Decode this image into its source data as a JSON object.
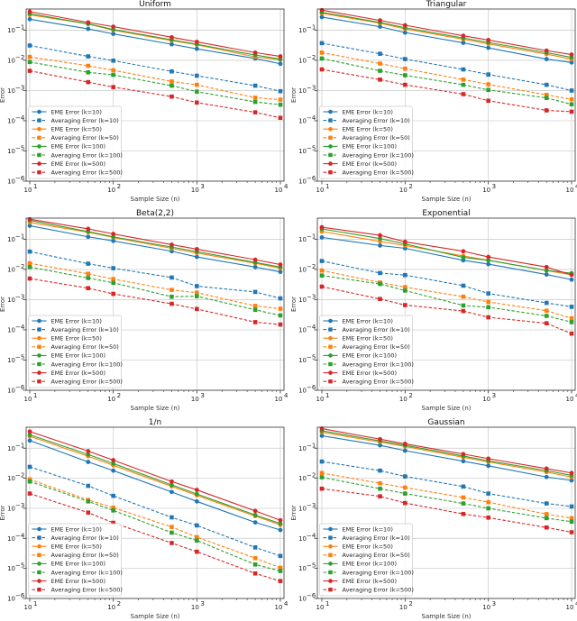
{
  "chart_data": {
    "type": "line",
    "layout": "3x2 grid of log-log subplots",
    "x": [
      10,
      50,
      100,
      500,
      1000,
      5000,
      10000
    ],
    "xlabel": "Sample Size (n)",
    "ylabel": "Error",
    "xscale": "log",
    "yscale": "log",
    "xlim": [
      10,
      10000
    ],
    "ylim": [
      1e-06,
      0.5
    ],
    "xticks": [
      10,
      100,
      1000,
      10000
    ],
    "xtick_labels": [
      "10",
      "10",
      "10",
      "10"
    ],
    "xtick_exponents": [
      "1",
      "2",
      "3",
      "4"
    ],
    "yticks": [
      1e-06,
      1e-05,
      0.0001,
      0.001,
      0.01,
      0.1
    ],
    "ytick_labels": [
      "10",
      "10",
      "10",
      "10",
      "10",
      "10"
    ],
    "ytick_exponents": [
      "−6",
      "−5",
      "−4",
      "−3",
      "−2",
      "−1"
    ],
    "grid": true,
    "legend_position": "lower-left",
    "series_styles": [
      {
        "name": "EME Error (k=10)",
        "color": "#1f77b4",
        "dash": "solid",
        "marker": "circle"
      },
      {
        "name": "Averaging Error (k=10)",
        "color": "#1f77b4",
        "dash": "dashed",
        "marker": "square"
      },
      {
        "name": "EME Error (k=50)",
        "color": "#ff7f0e",
        "dash": "solid",
        "marker": "circle"
      },
      {
        "name": "Averaging Error (k=50)",
        "color": "#ff7f0e",
        "dash": "dashed",
        "marker": "square"
      },
      {
        "name": "EME Error (k=100)",
        "color": "#2ca02c",
        "dash": "solid",
        "marker": "circle"
      },
      {
        "name": "Averaging Error (k=100)",
        "color": "#2ca02c",
        "dash": "dashed",
        "marker": "square"
      },
      {
        "name": "EME Error (k=500)",
        "color": "#d62728",
        "dash": "solid",
        "marker": "circle"
      },
      {
        "name": "Averaging Error (k=500)",
        "color": "#d62728",
        "dash": "dashed",
        "marker": "square"
      }
    ],
    "subplots": [
      {
        "title": "Uniform",
        "series": [
          {
            "name": "EME Error (k=10)",
            "values": [
              0.23,
              0.11,
              0.075,
              0.034,
              0.024,
              0.0115,
              0.0077
            ]
          },
          {
            "name": "Averaging Error (k=10)",
            "values": [
              0.031,
              0.0135,
              0.0098,
              0.0043,
              0.0031,
              0.00145,
              0.00095
            ]
          },
          {
            "name": "EME Error (k=50)",
            "values": [
              0.32,
              0.16,
              0.1,
              0.045,
              0.033,
              0.013,
              0.0105
            ]
          },
          {
            "name": "Averaging Error (k=50)",
            "values": [
              0.013,
              0.0066,
              0.0047,
              0.002,
              0.00155,
              0.00058,
              0.0005
            ]
          },
          {
            "name": "EME Error (k=100)",
            "values": [
              0.35,
              0.16,
              0.105,
              0.048,
              0.034,
              0.015,
              0.011
            ]
          },
          {
            "name": "Averaging Error (k=100)",
            "values": [
              0.0088,
              0.004,
              0.0033,
              0.00145,
              0.00092,
              0.00042,
              0.00034
            ]
          },
          {
            "name": "EME Error (k=500)",
            "values": [
              0.41,
              0.18,
              0.13,
              0.058,
              0.041,
              0.018,
              0.0135
            ]
          },
          {
            "name": "Averaging Error (k=500)",
            "values": [
              0.0045,
              0.0019,
              0.0013,
              0.00063,
              0.0004,
              0.00019,
              0.000125
            ]
          }
        ]
      },
      {
        "title": "Triangular",
        "series": [
          {
            "name": "EME Error (k=10)",
            "values": [
              0.27,
              0.13,
              0.083,
              0.038,
              0.026,
              0.011,
              0.0085
            ]
          },
          {
            "name": "Averaging Error (k=10)",
            "values": [
              0.037,
              0.0165,
              0.011,
              0.005,
              0.0034,
              0.00155,
              0.001
            ]
          },
          {
            "name": "EME Error (k=50)",
            "values": [
              0.36,
              0.17,
              0.11,
              0.05,
              0.035,
              0.016,
              0.011
            ]
          },
          {
            "name": "Averaging Error (k=50)",
            "values": [
              0.018,
              0.0078,
              0.0053,
              0.0023,
              0.0016,
              0.00072,
              0.00051
            ]
          },
          {
            "name": "EME Error (k=100)",
            "values": [
              0.39,
              0.18,
              0.12,
              0.055,
              0.039,
              0.018,
              0.0125
            ]
          },
          {
            "name": "Averaging Error (k=100)",
            "values": [
              0.0115,
              0.0045,
              0.0032,
              0.00155,
              0.00105,
              0.00057,
              0.00035
            ]
          },
          {
            "name": "EME Error (k=500)",
            "values": [
              0.46,
              0.21,
              0.145,
              0.065,
              0.047,
              0.021,
              0.0155
            ]
          },
          {
            "name": "Averaging Error (k=500)",
            "values": [
              0.005,
              0.0023,
              0.00155,
              0.00076,
              0.00046,
              0.00022,
              0.0002
            ]
          }
        ]
      },
      {
        "title": "Beta(2,2)",
        "series": [
          {
            "name": "EME Error (k=10)",
            "values": [
              0.28,
              0.12,
              0.088,
              0.04,
              0.026,
              0.012,
              0.0083
            ]
          },
          {
            "name": "Averaging Error (k=10)",
            "values": [
              0.039,
              0.0155,
              0.011,
              0.0054,
              0.0028,
              0.0018,
              0.0011
            ]
          },
          {
            "name": "EME Error (k=50)",
            "values": [
              0.36,
              0.17,
              0.115,
              0.05,
              0.035,
              0.016,
              0.011
            ]
          },
          {
            "name": "Averaging Error (k=50)",
            "values": [
              0.016,
              0.0072,
              0.0048,
              0.0021,
              0.0017,
              0.00062,
              0.0005
            ]
          },
          {
            "name": "EME Error (k=100)",
            "values": [
              0.42,
              0.18,
              0.12,
              0.055,
              0.039,
              0.017,
              0.012
            ]
          },
          {
            "name": "Averaging Error (k=100)",
            "values": [
              0.012,
              0.0052,
              0.0036,
              0.00125,
              0.0013,
              0.00046,
              0.0003
            ]
          },
          {
            "name": "EME Error (k=500)",
            "values": [
              0.46,
              0.22,
              0.15,
              0.066,
              0.047,
              0.021,
              0.0145
            ]
          },
          {
            "name": "Averaging Error (k=500)",
            "values": [
              0.005,
              0.0024,
              0.00155,
              0.00073,
              0.00049,
              0.00018,
              0.00015
            ]
          }
        ]
      },
      {
        "title": "Exponential",
        "series": [
          {
            "name": "EME Error (k=10)",
            "values": [
              0.115,
              0.062,
              0.05,
              0.02,
              0.015,
              0.0068,
              0.0046
            ]
          },
          {
            "name": "Averaging Error (k=10)",
            "values": [
              0.019,
              0.0076,
              0.0065,
              0.0029,
              0.0016,
              0.00078,
              0.00058
            ]
          },
          {
            "name": "EME Error (k=50)",
            "values": [
              0.18,
              0.085,
              0.062,
              0.028,
              0.02,
              0.0092,
              0.0067
            ]
          },
          {
            "name": "Averaging Error (k=50)",
            "values": [
              0.0092,
              0.0037,
              0.0026,
              0.00125,
              0.00084,
              0.00043,
              0.00024
            ]
          },
          {
            "name": "EME Error (k=100)",
            "values": [
              0.22,
              0.105,
              0.07,
              0.025,
              0.02,
              0.0093,
              0.0075
            ]
          },
          {
            "name": "Averaging Error (k=100)",
            "values": [
              0.0063,
              0.0033,
              0.002,
              0.00064,
              0.00056,
              0.00029,
              0.00018
            ]
          },
          {
            "name": "EME Error (k=500)",
            "values": [
              0.25,
              0.135,
              0.082,
              0.04,
              0.026,
              0.012,
              0.0066
            ]
          },
          {
            "name": "Averaging Error (k=500)",
            "values": [
              0.0027,
              0.00105,
              0.00066,
              0.00042,
              0.00026,
              0.000165,
              7.5e-05
            ]
          }
        ]
      },
      {
        "title": "1/n",
        "series": [
          {
            "name": "EME Error (k=10)",
            "values": [
              0.18,
              0.035,
              0.018,
              0.0035,
              0.0017,
              0.00034,
              0.00019
            ]
          },
          {
            "name": "Averaging Error (k=10)",
            "values": [
              0.024,
              0.0056,
              0.0026,
              0.0005,
              0.00027,
              5e-05,
              2.6e-05
            ]
          },
          {
            "name": "EME Error (k=50)",
            "values": [
              0.25,
              0.054,
              0.027,
              0.0054,
              0.0027,
              0.00055,
              0.00028
            ]
          },
          {
            "name": "Averaging Error (k=50)",
            "values": [
              0.0092,
              0.0019,
              0.00105,
              0.00024,
              0.00011,
              2.2e-05,
              1.05e-05
            ]
          },
          {
            "name": "EME Error (k=100)",
            "values": [
              0.28,
              0.062,
              0.031,
              0.006,
              0.003,
              0.0006,
              0.00031
            ]
          },
          {
            "name": "Averaging Error (k=100)",
            "values": [
              0.0078,
              0.0017,
              0.00085,
              0.000155,
              8.5e-05,
              1.35e-05,
              8.2e-06
            ]
          },
          {
            "name": "EME Error (k=500)",
            "values": [
              0.36,
              0.08,
              0.04,
              0.0078,
              0.0041,
              0.00082,
              0.0004
            ]
          },
          {
            "name": "Averaging Error (k=500)",
            "values": [
              0.0031,
              0.00072,
              0.00033,
              7e-05,
              3.6e-05,
              6.8e-06,
              3.8e-06
            ]
          }
        ]
      },
      {
        "title": "Gaussian",
        "series": [
          {
            "name": "EME Error (k=10)",
            "values": [
              0.26,
              0.125,
              0.083,
              0.037,
              0.026,
              0.011,
              0.0085
            ]
          },
          {
            "name": "Averaging Error (k=10)",
            "values": [
              0.036,
              0.018,
              0.0115,
              0.0053,
              0.0031,
              0.00145,
              0.00115
            ]
          },
          {
            "name": "EME Error (k=50)",
            "values": [
              0.34,
              0.16,
              0.115,
              0.05,
              0.035,
              0.016,
              0.011
            ]
          },
          {
            "name": "Averaging Error (k=50)",
            "values": [
              0.015,
              0.0068,
              0.0049,
              0.0023,
              0.0016,
              0.00064,
              0.00047
            ]
          },
          {
            "name": "EME Error (k=100)",
            "values": [
              0.38,
              0.175,
              0.125,
              0.055,
              0.038,
              0.018,
              0.0125
            ]
          },
          {
            "name": "Averaging Error (k=100)",
            "values": [
              0.0108,
              0.0045,
              0.0031,
              0.00145,
              0.001,
              0.00047,
              0.00036
            ]
          },
          {
            "name": "EME Error (k=500)",
            "values": [
              0.45,
              0.2,
              0.14,
              0.064,
              0.045,
              0.021,
              0.015
            ]
          },
          {
            "name": "Averaging Error (k=500)",
            "values": [
              0.0045,
              0.0025,
              0.0015,
              0.00065,
              0.00049,
              0.00023,
              0.00016
            ]
          }
        ]
      }
    ]
  }
}
